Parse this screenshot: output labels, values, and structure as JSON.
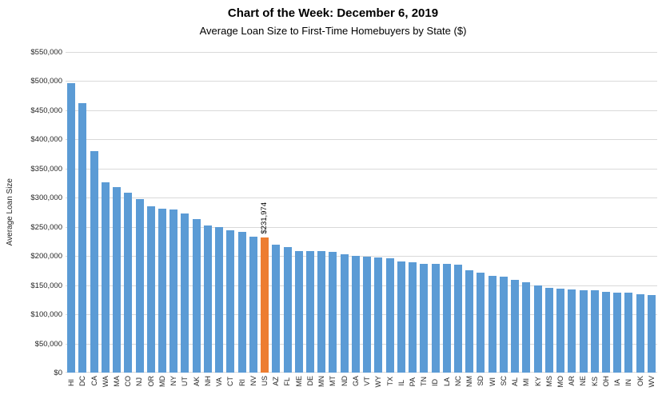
{
  "header": {
    "title": "Chart of the Week: December 6, 2019",
    "subtitle": "Average Loan Size to First-Time Homebuyers by State ($)"
  },
  "chart_data": {
    "type": "bar",
    "title": "Chart of the Week: December 6, 2019",
    "subtitle": "Average Loan Size to First-Time Homebuyers by State ($)",
    "xlabel": "",
    "ylabel": "Average Loan Size",
    "grid": true,
    "legend": "none",
    "y_axis": {
      "min": 0,
      "max": 550000,
      "step": 50000,
      "tick_labels": [
        "$0",
        "$50,000",
        "$100,000",
        "$150,000",
        "$200,000",
        "$250,000",
        "$300,000",
        "$350,000",
        "$400,000",
        "$450,000",
        "$500,000",
        "$550,000"
      ]
    },
    "categories": [
      "HI",
      "DC",
      "CA",
      "WA",
      "MA",
      "CO",
      "NJ",
      "OR",
      "MD",
      "NY",
      "UT",
      "AK",
      "NH",
      "VA",
      "CT",
      "RI",
      "NV",
      "US",
      "AZ",
      "FL",
      "ME",
      "DE",
      "MN",
      "MT",
      "ND",
      "GA",
      "VT",
      "WY",
      "TX",
      "IL",
      "PA",
      "TN",
      "ID",
      "LA",
      "NC",
      "NM",
      "SD",
      "WI",
      "SC",
      "AL",
      "MI",
      "KY",
      "MS",
      "MO",
      "AR",
      "NE",
      "KS",
      "OH",
      "IA",
      "IN",
      "OK",
      "WV"
    ],
    "values": [
      497000,
      462000,
      380000,
      327000,
      318000,
      309000,
      298000,
      286000,
      281000,
      280000,
      273000,
      264000,
      253000,
      250000,
      244000,
      241000,
      233000,
      231974,
      219000,
      216000,
      209000,
      208000,
      208000,
      207000,
      203000,
      200000,
      199000,
      197000,
      196000,
      191000,
      189000,
      187000,
      186000,
      186000,
      185000,
      176000,
      172000,
      166000,
      165000,
      159000,
      155000,
      149000,
      146000,
      144000,
      143000,
      142000,
      141000,
      139000,
      137000,
      137000,
      134000,
      133000
    ],
    "bar_color": "#5B9BD5",
    "highlight": {
      "category": "US",
      "color": "#ED7D31",
      "label": "$231,974"
    },
    "gridline_color": "#D9D9D9"
  }
}
